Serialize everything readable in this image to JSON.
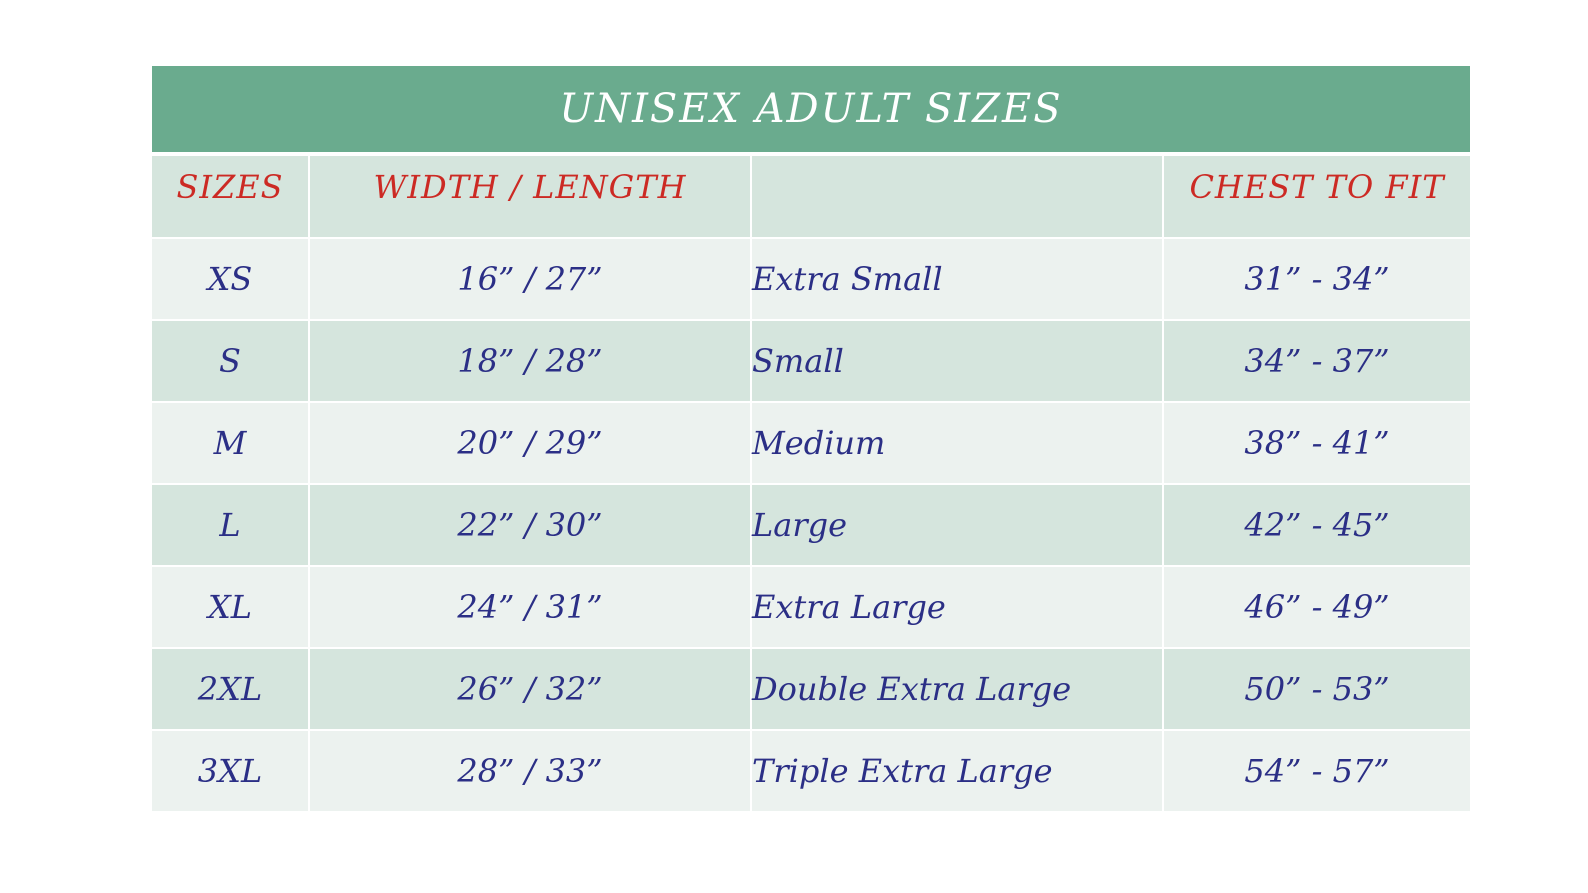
{
  "table": {
    "title": "UNISEX ADULT SIZES",
    "headers": [
      "SIZES",
      "WIDTH / LENGTH",
      "",
      "CHEST TO FIT"
    ],
    "rows": [
      {
        "size": "XS",
        "width_length": "16” / 27”",
        "name": "Extra Small",
        "chest": "31” - 34”"
      },
      {
        "size": "S",
        "width_length": "18” / 28”",
        "name": "Small",
        "chest": "34” - 37”"
      },
      {
        "size": "M",
        "width_length": "20” / 29”",
        "name": "Medium",
        "chest": "38” - 41”"
      },
      {
        "size": "L",
        "width_length": "22” / 30”",
        "name": "Large",
        "chest": "42” - 45”"
      },
      {
        "size": "XL",
        "width_length": "24” / 31”",
        "name": "Extra Large",
        "chest": "46” - 49”"
      },
      {
        "size": "2XL",
        "width_length": "26” / 32”",
        "name": "Double Extra Large",
        "chest": "50” - 53”"
      },
      {
        "size": "3XL",
        "width_length": "28” / 33”",
        "name": "Triple Extra Large",
        "chest": "54” - 57”"
      }
    ]
  },
  "colors": {
    "title_bg": "#6aab8e",
    "header_text": "#cc2a24",
    "body_text": "#2b2f86",
    "row_light": "#ecf2ef",
    "row_dark": "#d5e5dd"
  }
}
